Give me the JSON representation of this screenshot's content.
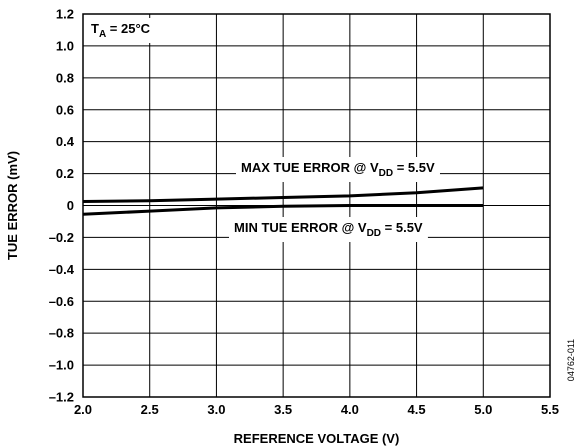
{
  "chart_data": {
    "type": "line",
    "title": "",
    "xlabel": "REFERENCE VOLTAGE (V)",
    "ylabel": "TUE ERROR (mV)",
    "xlim": [
      2.0,
      5.5
    ],
    "ylim": [
      -1.2,
      1.2
    ],
    "x_ticks": [
      "2.0",
      "2.5",
      "3.0",
      "3.5",
      "4.0",
      "4.5",
      "5.0",
      "5.5"
    ],
    "y_ticks": [
      "1.2",
      "1.0",
      "0.8",
      "0.6",
      "0.4",
      "0.2",
      "0",
      "–0.2",
      "–0.4",
      "–0.6",
      "–0.8",
      "–1.0",
      "–1.2"
    ],
    "grid": true,
    "series": [
      {
        "name": "MAX TUE ERROR @ VDD = 5.5V",
        "x": [
          2.0,
          2.5,
          3.0,
          3.5,
          4.0,
          4.5,
          5.0
        ],
        "y": [
          0.025,
          0.03,
          0.04,
          0.05,
          0.06,
          0.08,
          0.11
        ]
      },
      {
        "name": "MIN TUE ERROR @ VDD = 5.5V",
        "x": [
          2.0,
          2.5,
          3.0,
          3.5,
          4.0,
          4.5,
          5.0
        ],
        "y": [
          -0.055,
          -0.035,
          -0.015,
          -0.005,
          0.0,
          0.0,
          0.0
        ]
      }
    ],
    "annotations": {
      "temp": {
        "pre": "T",
        "sub": "A",
        "post": " = 25°C"
      },
      "max_label": {
        "pre": "MAX TUE ERROR @ V",
        "sub": "DD",
        "post": " = 5.5V"
      },
      "min_label": {
        "pre": "MIN TUE ERROR @ V",
        "sub": "DD",
        "post": " = 5.5V"
      }
    },
    "figure_id": "04762-011"
  }
}
